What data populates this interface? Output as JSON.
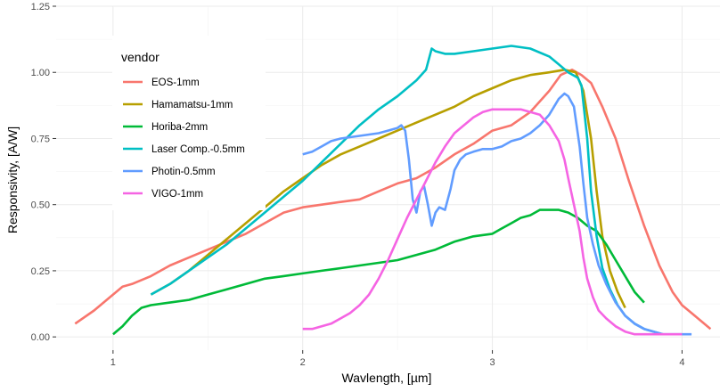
{
  "chart_data": {
    "type": "line",
    "title": "",
    "xlabel": "Wavlength, [µm]",
    "ylabel": "Responsivity, [A/W]",
    "xlim": [
      0.7,
      4.2
    ],
    "ylim": [
      -0.05,
      1.25
    ],
    "x_ticks": [
      1,
      2,
      3,
      4
    ],
    "y_ticks": [
      0.0,
      0.25,
      0.5,
      0.75,
      1.0,
      1.25
    ],
    "x_tick_labels": [
      "1",
      "2",
      "3",
      "4"
    ],
    "y_tick_labels": [
      "0.00",
      "0.25",
      "0.50",
      "0.75",
      "1.00",
      "1.25"
    ],
    "grid": true,
    "legend": {
      "title": "vendor",
      "position": "top-left-inside"
    },
    "series": [
      {
        "name": "EOS-1mm",
        "color": "#F8766D",
        "points": [
          [
            0.8,
            0.05
          ],
          [
            0.9,
            0.1
          ],
          [
            1.0,
            0.16
          ],
          [
            1.05,
            0.19
          ],
          [
            1.1,
            0.2
          ],
          [
            1.2,
            0.23
          ],
          [
            1.3,
            0.27
          ],
          [
            1.4,
            0.3
          ],
          [
            1.5,
            0.33
          ],
          [
            1.6,
            0.36
          ],
          [
            1.7,
            0.39
          ],
          [
            1.8,
            0.43
          ],
          [
            1.9,
            0.47
          ],
          [
            2.0,
            0.49
          ],
          [
            2.1,
            0.5
          ],
          [
            2.2,
            0.51
          ],
          [
            2.3,
            0.52
          ],
          [
            2.4,
            0.55
          ],
          [
            2.5,
            0.58
          ],
          [
            2.6,
            0.6
          ],
          [
            2.7,
            0.64
          ],
          [
            2.8,
            0.69
          ],
          [
            2.9,
            0.73
          ],
          [
            3.0,
            0.78
          ],
          [
            3.1,
            0.8
          ],
          [
            3.2,
            0.85
          ],
          [
            3.3,
            0.93
          ],
          [
            3.36,
            0.99
          ],
          [
            3.42,
            1.01
          ],
          [
            3.47,
            0.99
          ],
          [
            3.52,
            0.96
          ],
          [
            3.58,
            0.87
          ],
          [
            3.65,
            0.75
          ],
          [
            3.72,
            0.59
          ],
          [
            3.8,
            0.42
          ],
          [
            3.88,
            0.27
          ],
          [
            3.95,
            0.17
          ],
          [
            4.0,
            0.12
          ],
          [
            4.05,
            0.09
          ],
          [
            4.1,
            0.06
          ],
          [
            4.15,
            0.03
          ]
        ]
      },
      {
        "name": "Hamamatsu-1mm",
        "color": "#B79F00",
        "points": [
          [
            1.2,
            0.16
          ],
          [
            1.3,
            0.2
          ],
          [
            1.4,
            0.25
          ],
          [
            1.5,
            0.31
          ],
          [
            1.6,
            0.37
          ],
          [
            1.7,
            0.43
          ],
          [
            1.8,
            0.49
          ],
          [
            1.9,
            0.55
          ],
          [
            2.0,
            0.6
          ],
          [
            2.1,
            0.65
          ],
          [
            2.2,
            0.69
          ],
          [
            2.3,
            0.72
          ],
          [
            2.4,
            0.75
          ],
          [
            2.5,
            0.78
          ],
          [
            2.6,
            0.81
          ],
          [
            2.7,
            0.84
          ],
          [
            2.8,
            0.87
          ],
          [
            2.9,
            0.91
          ],
          [
            3.0,
            0.94
          ],
          [
            3.1,
            0.97
          ],
          [
            3.2,
            0.99
          ],
          [
            3.3,
            1.0
          ],
          [
            3.38,
            1.01
          ],
          [
            3.44,
            1.0
          ],
          [
            3.48,
            0.93
          ],
          [
            3.52,
            0.75
          ],
          [
            3.55,
            0.55
          ],
          [
            3.58,
            0.38
          ],
          [
            3.62,
            0.25
          ],
          [
            3.66,
            0.17
          ],
          [
            3.7,
            0.11
          ]
        ]
      },
      {
        "name": "Horiba-2mm",
        "color": "#00BA38",
        "points": [
          [
            1.0,
            0.01
          ],
          [
            1.05,
            0.04
          ],
          [
            1.1,
            0.08
          ],
          [
            1.15,
            0.11
          ],
          [
            1.2,
            0.12
          ],
          [
            1.3,
            0.13
          ],
          [
            1.4,
            0.14
          ],
          [
            1.5,
            0.16
          ],
          [
            1.6,
            0.18
          ],
          [
            1.7,
            0.2
          ],
          [
            1.8,
            0.22
          ],
          [
            1.9,
            0.23
          ],
          [
            2.0,
            0.24
          ],
          [
            2.1,
            0.25
          ],
          [
            2.2,
            0.26
          ],
          [
            2.3,
            0.27
          ],
          [
            2.4,
            0.28
          ],
          [
            2.5,
            0.29
          ],
          [
            2.6,
            0.31
          ],
          [
            2.7,
            0.33
          ],
          [
            2.8,
            0.36
          ],
          [
            2.9,
            0.38
          ],
          [
            3.0,
            0.39
          ],
          [
            3.05,
            0.41
          ],
          [
            3.1,
            0.43
          ],
          [
            3.15,
            0.45
          ],
          [
            3.2,
            0.46
          ],
          [
            3.25,
            0.48
          ],
          [
            3.3,
            0.48
          ],
          [
            3.35,
            0.48
          ],
          [
            3.4,
            0.47
          ],
          [
            3.45,
            0.45
          ],
          [
            3.5,
            0.42
          ],
          [
            3.55,
            0.4
          ],
          [
            3.6,
            0.35
          ],
          [
            3.65,
            0.29
          ],
          [
            3.7,
            0.23
          ],
          [
            3.75,
            0.17
          ],
          [
            3.8,
            0.13
          ]
        ]
      },
      {
        "name": "Laser Comp.-0.5mm",
        "color": "#00BFC4",
        "points": [
          [
            1.2,
            0.16
          ],
          [
            1.3,
            0.2
          ],
          [
            1.4,
            0.25
          ],
          [
            1.5,
            0.3
          ],
          [
            1.6,
            0.35
          ],
          [
            1.7,
            0.41
          ],
          [
            1.8,
            0.47
          ],
          [
            1.9,
            0.53
          ],
          [
            2.0,
            0.59
          ],
          [
            2.1,
            0.66
          ],
          [
            2.2,
            0.73
          ],
          [
            2.3,
            0.8
          ],
          [
            2.4,
            0.86
          ],
          [
            2.5,
            0.91
          ],
          [
            2.6,
            0.97
          ],
          [
            2.65,
            1.01
          ],
          [
            2.68,
            1.09
          ],
          [
            2.7,
            1.08
          ],
          [
            2.75,
            1.07
          ],
          [
            2.8,
            1.07
          ],
          [
            2.9,
            1.08
          ],
          [
            3.0,
            1.09
          ],
          [
            3.1,
            1.1
          ],
          [
            3.2,
            1.09
          ],
          [
            3.3,
            1.06
          ],
          [
            3.35,
            1.03
          ],
          [
            3.4,
            1.0
          ],
          [
            3.45,
            0.98
          ],
          [
            3.47,
            0.95
          ],
          [
            3.5,
            0.75
          ],
          [
            3.52,
            0.55
          ],
          [
            3.55,
            0.38
          ],
          [
            3.58,
            0.26
          ],
          [
            3.62,
            0.18
          ],
          [
            3.66,
            0.12
          ],
          [
            3.7,
            0.08
          ],
          [
            3.75,
            0.05
          ],
          [
            3.8,
            0.03
          ],
          [
            3.85,
            0.02
          ],
          [
            3.9,
            0.01
          ]
        ]
      },
      {
        "name": "Photin-0.5mm",
        "color": "#619CFF",
        "points": [
          [
            2.0,
            0.69
          ],
          [
            2.05,
            0.7
          ],
          [
            2.1,
            0.72
          ],
          [
            2.15,
            0.74
          ],
          [
            2.2,
            0.75
          ],
          [
            2.3,
            0.76
          ],
          [
            2.4,
            0.77
          ],
          [
            2.45,
            0.78
          ],
          [
            2.5,
            0.79
          ],
          [
            2.52,
            0.8
          ],
          [
            2.54,
            0.78
          ],
          [
            2.56,
            0.67
          ],
          [
            2.58,
            0.52
          ],
          [
            2.6,
            0.47
          ],
          [
            2.62,
            0.55
          ],
          [
            2.64,
            0.57
          ],
          [
            2.66,
            0.5
          ],
          [
            2.68,
            0.42
          ],
          [
            2.7,
            0.47
          ],
          [
            2.72,
            0.49
          ],
          [
            2.75,
            0.48
          ],
          [
            2.78,
            0.56
          ],
          [
            2.8,
            0.63
          ],
          [
            2.83,
            0.67
          ],
          [
            2.86,
            0.69
          ],
          [
            2.9,
            0.7
          ],
          [
            2.95,
            0.71
          ],
          [
            3.0,
            0.71
          ],
          [
            3.05,
            0.72
          ],
          [
            3.1,
            0.74
          ],
          [
            3.15,
            0.75
          ],
          [
            3.2,
            0.77
          ],
          [
            3.25,
            0.8
          ],
          [
            3.3,
            0.84
          ],
          [
            3.35,
            0.9
          ],
          [
            3.38,
            0.92
          ],
          [
            3.4,
            0.91
          ],
          [
            3.43,
            0.87
          ],
          [
            3.46,
            0.72
          ],
          [
            3.48,
            0.58
          ],
          [
            3.5,
            0.45
          ],
          [
            3.53,
            0.35
          ],
          [
            3.56,
            0.27
          ],
          [
            3.6,
            0.2
          ],
          [
            3.65,
            0.13
          ],
          [
            3.7,
            0.08
          ],
          [
            3.75,
            0.05
          ],
          [
            3.8,
            0.03
          ],
          [
            3.85,
            0.02
          ],
          [
            3.9,
            0.01
          ],
          [
            3.95,
            0.01
          ],
          [
            4.0,
            0.01
          ],
          [
            4.05,
            0.01
          ]
        ]
      },
      {
        "name": "VIGO-1mm",
        "color": "#F564E3",
        "points": [
          [
            2.0,
            0.03
          ],
          [
            2.05,
            0.03
          ],
          [
            2.1,
            0.04
          ],
          [
            2.15,
            0.05
          ],
          [
            2.2,
            0.07
          ],
          [
            2.25,
            0.09
          ],
          [
            2.3,
            0.12
          ],
          [
            2.35,
            0.16
          ],
          [
            2.4,
            0.22
          ],
          [
            2.45,
            0.29
          ],
          [
            2.5,
            0.37
          ],
          [
            2.55,
            0.45
          ],
          [
            2.6,
            0.52
          ],
          [
            2.65,
            0.59
          ],
          [
            2.7,
            0.66
          ],
          [
            2.75,
            0.72
          ],
          [
            2.8,
            0.77
          ],
          [
            2.85,
            0.8
          ],
          [
            2.9,
            0.83
          ],
          [
            2.95,
            0.85
          ],
          [
            3.0,
            0.86
          ],
          [
            3.05,
            0.86
          ],
          [
            3.1,
            0.86
          ],
          [
            3.15,
            0.86
          ],
          [
            3.2,
            0.85
          ],
          [
            3.25,
            0.84
          ],
          [
            3.3,
            0.8
          ],
          [
            3.35,
            0.74
          ],
          [
            3.38,
            0.67
          ],
          [
            3.4,
            0.6
          ],
          [
            3.43,
            0.5
          ],
          [
            3.46,
            0.4
          ],
          [
            3.48,
            0.3
          ],
          [
            3.5,
            0.22
          ],
          [
            3.53,
            0.15
          ],
          [
            3.56,
            0.1
          ],
          [
            3.6,
            0.07
          ],
          [
            3.65,
            0.04
          ],
          [
            3.7,
            0.02
          ],
          [
            3.75,
            0.01
          ],
          [
            3.8,
            0.01
          ],
          [
            3.9,
            0.01
          ],
          [
            4.0,
            0.01
          ]
        ]
      }
    ]
  }
}
